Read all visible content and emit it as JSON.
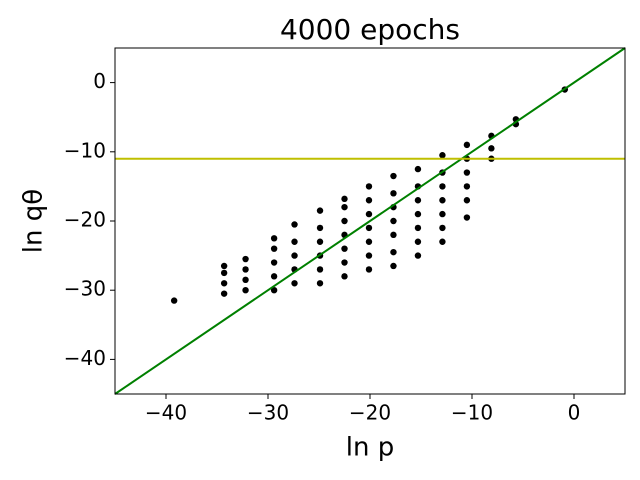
{
  "chart_data": {
    "type": "scatter",
    "title": "4000 epochs",
    "x_label": "ln p",
    "y_label": "ln qθ",
    "xlim": [
      -45,
      5
    ],
    "ylim": [
      -45,
      5
    ],
    "xticks": [
      {
        "value": -40,
        "label": "−40"
      },
      {
        "value": -30,
        "label": "−30"
      },
      {
        "value": -20,
        "label": "−20"
      },
      {
        "value": -10,
        "label": "−10"
      },
      0
    ],
    "yticks": [
      {
        "value": -40,
        "label": "−40"
      },
      {
        "value": -30,
        "label": "−30"
      },
      {
        "value": -20,
        "label": "−20"
      },
      {
        "value": -10,
        "label": "−10"
      },
      0
    ],
    "series": [
      {
        "color": "#000000",
        "x": [
          -39.2,
          -34.3,
          -34.3,
          -34.3,
          -34.3,
          -32.2,
          -32.2,
          -32.2,
          -32.2,
          -29.4,
          -29.4,
          -29.4,
          -29.4,
          -29.4,
          -27.4,
          -27.4,
          -27.4,
          -27.4,
          -27.4,
          -24.9,
          -24.9,
          -24.9,
          -24.9,
          -24.9,
          -24.9,
          -22.5,
          -22.5,
          -22.5,
          -22.5,
          -22.5,
          -22.5,
          -22.5,
          -20.1,
          -20.1,
          -20.1,
          -20.1,
          -20.1,
          -20.1,
          -20.1,
          -17.7,
          -17.7,
          -17.7,
          -17.7,
          -17.7,
          -17.7,
          -17.7,
          -15.3,
          -15.3,
          -15.3,
          -15.3,
          -15.3,
          -15.3,
          -15.3,
          -12.9,
          -12.9,
          -12.9,
          -12.9,
          -12.9,
          -12.9,
          -12.9,
          -10.5,
          -10.5,
          -10.5,
          -10.5,
          -10.5,
          -10.5,
          -8.1,
          -8.1,
          -8.1,
          -5.7,
          -5.7,
          -0.9
        ],
        "y": [
          -31.5,
          -30.5,
          -29,
          -27.5,
          -26.5,
          -30,
          -28.5,
          -27,
          -25.5,
          -30,
          -28,
          -26,
          -24,
          -22.5,
          -29,
          -27,
          -25,
          -23,
          -20.5,
          -29,
          -27,
          -25,
          -23,
          -21,
          -18.5,
          -28,
          -26,
          -24,
          -22,
          -20,
          -18,
          -16.8,
          -27,
          -25,
          -23,
          -21,
          -19,
          -17,
          -15,
          -26.5,
          -24.5,
          -22,
          -20,
          -18,
          -16,
          -13.5,
          -25,
          -23,
          -21,
          -19,
          -17,
          -15,
          -12.5,
          -23,
          -21,
          -19,
          -17,
          -15,
          -13,
          -10.5,
          -19.5,
          -17,
          -15,
          -13,
          -11,
          -9,
          -11,
          -9.5,
          -7.7,
          -6,
          -5.3,
          -1
        ]
      }
    ],
    "lines": [
      {
        "color": "#008000",
        "x": [
          -45,
          5
        ],
        "y": [
          -45,
          5
        ]
      }
    ],
    "hline": {
      "value": -11,
      "color": "#bfbf00"
    }
  }
}
